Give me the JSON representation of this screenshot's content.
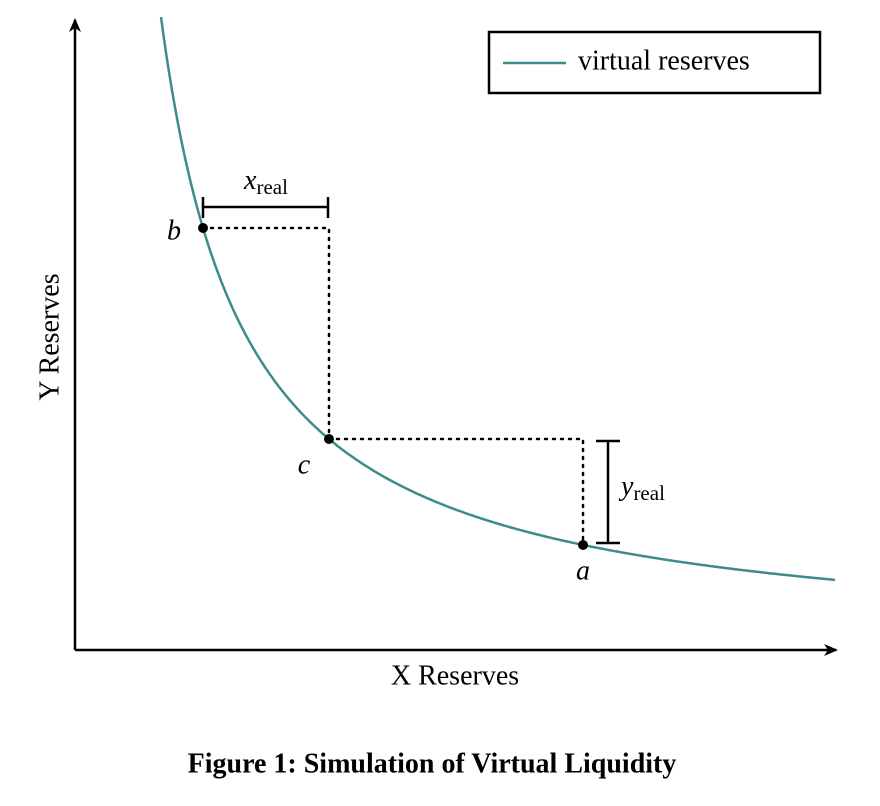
{
  "legend": {
    "label": "virtual reserves"
  },
  "points": [
    {
      "label": "b"
    },
    {
      "label": "c"
    },
    {
      "label": "a"
    }
  ],
  "x_real": {
    "symbol": "x",
    "subscript": "real"
  },
  "y_real": {
    "symbol": "y",
    "subscript": "real"
  },
  "axes": {
    "y_label": "Y Reserves",
    "x_label": "X Reserves"
  },
  "caption": "Figure 1: Simulation of Virtual Liquidity"
}
